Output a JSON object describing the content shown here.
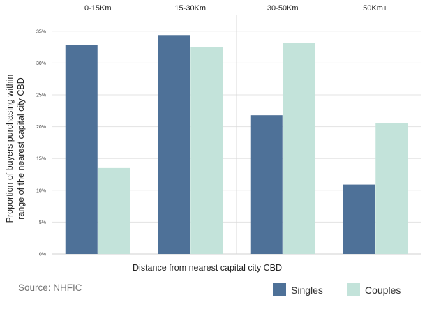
{
  "chart_data": {
    "type": "bar",
    "categories": [
      "0-15Km",
      "15-30Km",
      "30-50Km",
      "50Km+"
    ],
    "series": [
      {
        "name": "Singles",
        "values": [
          32.8,
          34.4,
          21.8,
          10.9
        ],
        "color": "#4e7198"
      },
      {
        "name": "Couples",
        "values": [
          13.5,
          32.5,
          33.2,
          20.6
        ],
        "color": "#c3e3da"
      }
    ],
    "y_ticks": [
      "0%",
      "5%",
      "10%",
      "15%",
      "20%",
      "25%",
      "30%",
      "35%"
    ],
    "ylim": [
      0,
      37.5
    ],
    "xlabel": "Distance from nearest capital city CBD",
    "ylabel": [
      "Proportion of buyers purchasing within",
      "range of the nearest capital city CBD"
    ],
    "source": "Source: NHFIC",
    "legend_position": "bottom-right",
    "grid": true
  }
}
